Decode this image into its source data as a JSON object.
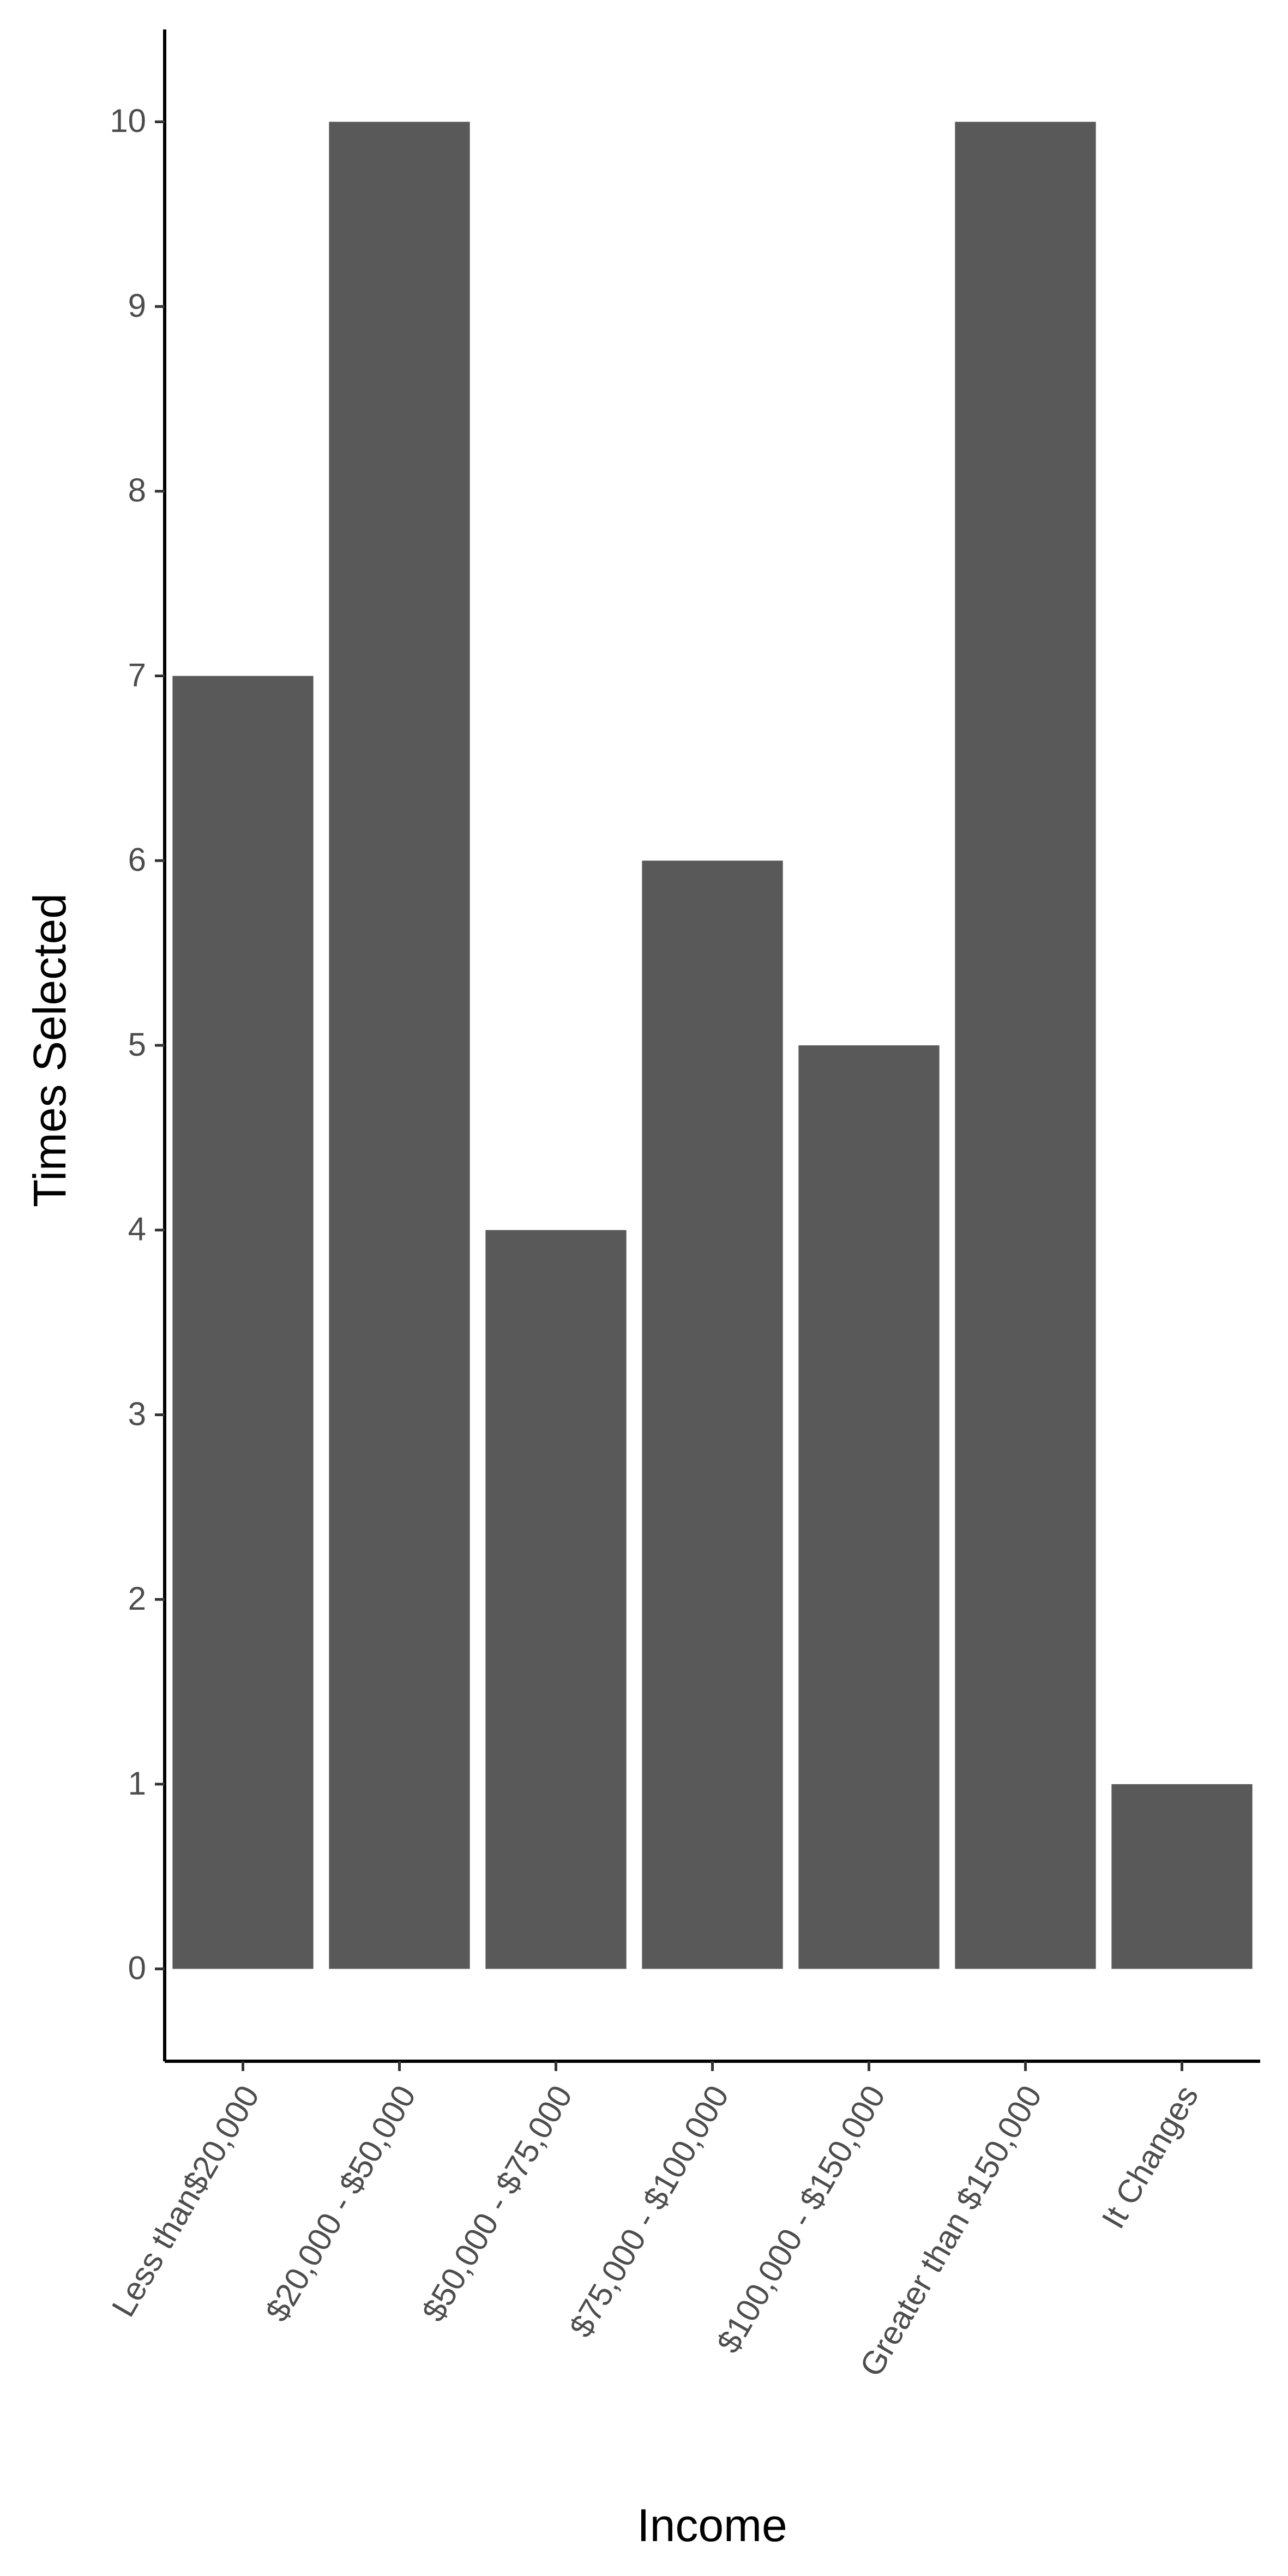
{
  "chart_data": {
    "type": "bar",
    "categories": [
      "Less than$20,000",
      "$20,000 - $50,000",
      "$50,000 - $75,000",
      "$75,000 - $100,000",
      "$100,000 - $150,000",
      "Greater than $150,000",
      "It Changes"
    ],
    "values": [
      7,
      10,
      4,
      6,
      5,
      10,
      1
    ],
    "color": "#595959",
    "x_label": "Income",
    "y_label": "Times Selected",
    "ylim": [
      -0.5,
      10.5
    ],
    "yticks": [
      0,
      1,
      2,
      3,
      4,
      5,
      6,
      7,
      8,
      9,
      10
    ]
  }
}
